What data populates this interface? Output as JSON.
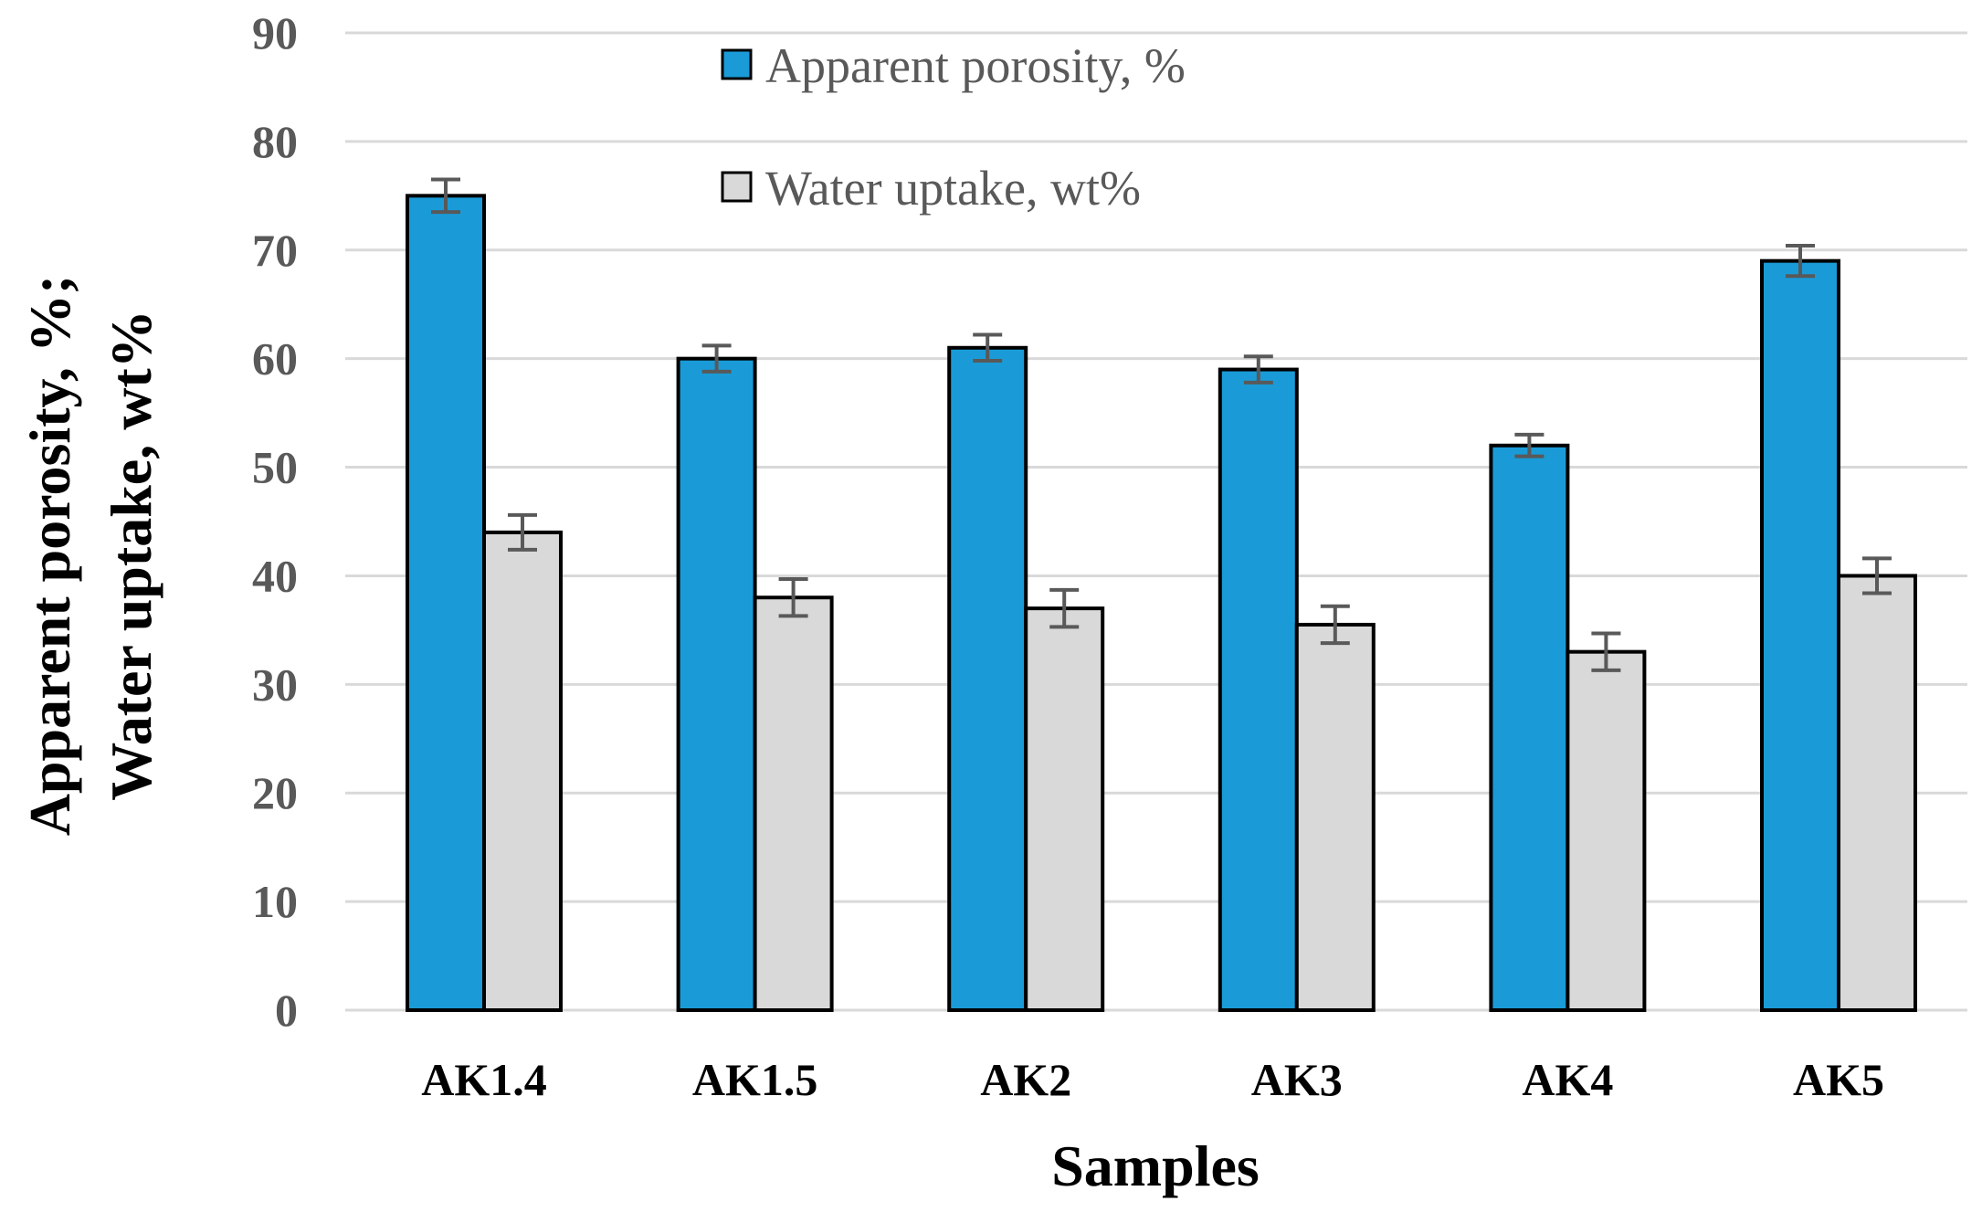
{
  "chart_data": {
    "type": "bar",
    "title": "",
    "xlabel": "Samples",
    "ylabel_lines": [
      "Apparent porosity, %;",
      "Water uptake, wt%"
    ],
    "categories": [
      "AK1.4",
      "AK1.5",
      "AK2",
      "AK3",
      "AK4",
      "AK5"
    ],
    "ylim": [
      0,
      90
    ],
    "yticks": [
      0,
      10,
      20,
      30,
      40,
      50,
      60,
      70,
      80,
      90
    ],
    "grid": true,
    "legend_position": "top-center",
    "series": [
      {
        "name": "Apparent porosity, %",
        "color": "#1a9bd7",
        "values": [
          75,
          60,
          61,
          59,
          52,
          69
        ],
        "errors": [
          1.5,
          1.2,
          1.2,
          1.2,
          1.0,
          1.4
        ]
      },
      {
        "name": "Water uptake, wt%",
        "color": "#d9d9d9",
        "values": [
          44,
          38,
          37,
          35.5,
          33,
          40
        ],
        "errors": [
          1.6,
          1.7,
          1.7,
          1.7,
          1.7,
          1.6
        ]
      }
    ]
  }
}
